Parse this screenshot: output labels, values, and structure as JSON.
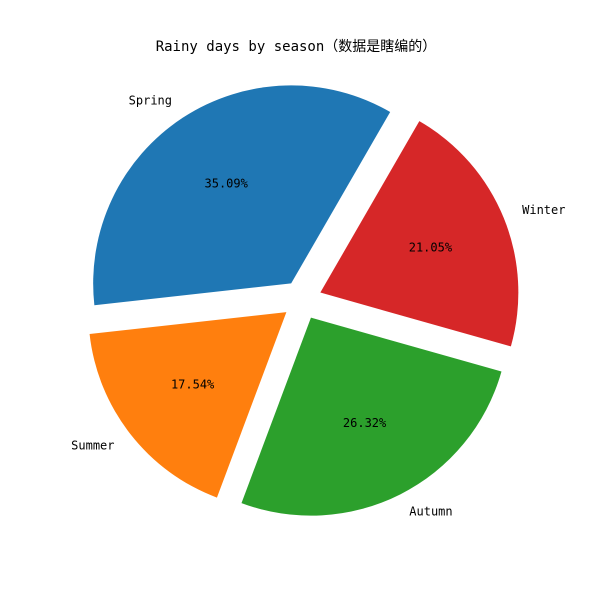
{
  "chart_data": {
    "type": "pie",
    "title": "Rainy days by season（数据是瞎编的）",
    "categories": [
      "Spring",
      "Summer",
      "Autumn",
      "Winter"
    ],
    "values": [
      35.09,
      17.54,
      26.32,
      21.05
    ],
    "percent_labels": [
      "35.09%",
      "17.54%",
      "26.32%",
      "21.05%"
    ],
    "colors": [
      "#1f77b4",
      "#ff7f0e",
      "#2ca02c",
      "#d62728"
    ],
    "start_angle_deg": 60,
    "direction": "counterclockwise",
    "explode": [
      0.1,
      0.1,
      0.1,
      0.1
    ],
    "legend": "none"
  }
}
